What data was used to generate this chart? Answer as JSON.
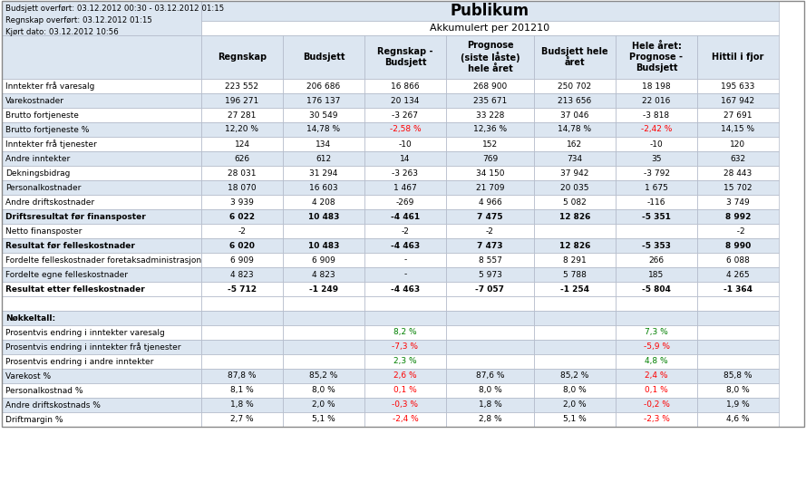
{
  "title": "Publikum",
  "subtitle": "Akkumulert per 201210",
  "info_lines": [
    "Budsjett overført: 03.12.2012 00:30 - 03.12.2012 01:15",
    "Regnskap overført: 03.12.2012 01:15",
    "Kjørt dato: 03.12.2012 10:56"
  ],
  "col_headers": [
    "Regnskap",
    "Budsjett",
    "Regnskap -\nBudsjett",
    "Prognose\n(siste låste)\nhele året",
    "Budsjett hele\nåret",
    "Hele året:\nPrognose -\nBudsjett",
    "Hittil i fjor"
  ],
  "rows": [
    {
      "label": "Inntekter frå varesalg",
      "bold": false,
      "bg": "white",
      "values": [
        "223 552",
        "206 686",
        "16 866",
        "268 900",
        "250 702",
        "18 198",
        "195 633"
      ],
      "colors": [
        "k",
        "k",
        "k",
        "k",
        "k",
        "k",
        "k"
      ]
    },
    {
      "label": "Varekostnader",
      "bold": false,
      "bg": "light",
      "values": [
        "196 271",
        "176 137",
        "20 134",
        "235 671",
        "213 656",
        "22 016",
        "167 942"
      ],
      "colors": [
        "k",
        "k",
        "k",
        "k",
        "k",
        "k",
        "k"
      ]
    },
    {
      "label": "Brutto fortjeneste",
      "bold": false,
      "bg": "white",
      "values": [
        "27 281",
        "30 549",
        "-3 267",
        "33 228",
        "37 046",
        "-3 818",
        "27 691"
      ],
      "colors": [
        "k",
        "k",
        "k",
        "k",
        "k",
        "k",
        "k"
      ]
    },
    {
      "label": "Brutto fortjeneste %",
      "bold": false,
      "bg": "light",
      "values": [
        "12,20 %",
        "14,78 %",
        "-2,58 %",
        "12,36 %",
        "14,78 %",
        "-2,42 %",
        "14,15 %"
      ],
      "colors": [
        "k",
        "k",
        "red",
        "k",
        "k",
        "red",
        "k"
      ]
    },
    {
      "label": "Inntekter frå tjenester",
      "bold": false,
      "bg": "white",
      "values": [
        "124",
        "134",
        "-10",
        "152",
        "162",
        "-10",
        "120"
      ],
      "colors": [
        "k",
        "k",
        "k",
        "k",
        "k",
        "k",
        "k"
      ]
    },
    {
      "label": "Andre inntekter",
      "bold": false,
      "bg": "light",
      "values": [
        "626",
        "612",
        "14",
        "769",
        "734",
        "35",
        "632"
      ],
      "colors": [
        "k",
        "k",
        "k",
        "k",
        "k",
        "k",
        "k"
      ]
    },
    {
      "label": "Dekningsbidrag",
      "bold": false,
      "bg": "white",
      "values": [
        "28 031",
        "31 294",
        "-3 263",
        "34 150",
        "37 942",
        "-3 792",
        "28 443"
      ],
      "colors": [
        "k",
        "k",
        "k",
        "k",
        "k",
        "k",
        "k"
      ]
    },
    {
      "label": "Personalkostnader",
      "bold": false,
      "bg": "light",
      "values": [
        "18 070",
        "16 603",
        "1 467",
        "21 709",
        "20 035",
        "1 675",
        "15 702"
      ],
      "colors": [
        "k",
        "k",
        "k",
        "k",
        "k",
        "k",
        "k"
      ]
    },
    {
      "label": "Andre driftskostnader",
      "bold": false,
      "bg": "white",
      "values": [
        "3 939",
        "4 208",
        "-269",
        "4 966",
        "5 082",
        "-116",
        "3 749"
      ],
      "colors": [
        "k",
        "k",
        "k",
        "k",
        "k",
        "k",
        "k"
      ]
    },
    {
      "label": "Driftsresultat før finansposter",
      "bold": true,
      "bg": "light",
      "values": [
        "6 022",
        "10 483",
        "-4 461",
        "7 475",
        "12 826",
        "-5 351",
        "8 992"
      ],
      "colors": [
        "k",
        "k",
        "k",
        "k",
        "k",
        "k",
        "k"
      ]
    },
    {
      "label": "Netto finansposter",
      "bold": false,
      "bg": "white",
      "values": [
        "-2",
        "",
        "-2",
        "-2",
        "",
        "",
        "  -2"
      ],
      "colors": [
        "k",
        "k",
        "k",
        "k",
        "k",
        "k",
        "k"
      ]
    },
    {
      "label": "Resultat før felleskostnader",
      "bold": true,
      "bg": "light",
      "values": [
        "6 020",
        "10 483",
        "-4 463",
        "7 473",
        "12 826",
        "-5 353",
        "8 990"
      ],
      "colors": [
        "k",
        "k",
        "k",
        "k",
        "k",
        "k",
        "k"
      ]
    },
    {
      "label": "Fordelte felleskostnader foretaksadministrasjon",
      "bold": false,
      "bg": "white",
      "values": [
        "6 909",
        "6 909",
        "-",
        "8 557",
        "8 291",
        "266",
        "6 088"
      ],
      "colors": [
        "k",
        "k",
        "k",
        "k",
        "k",
        "k",
        "k"
      ]
    },
    {
      "label": "Fordelte egne felleskostnader",
      "bold": false,
      "bg": "light",
      "values": [
        "4 823",
        "4 823",
        "-",
        "5 973",
        "5 788",
        "185",
        "4 265"
      ],
      "colors": [
        "k",
        "k",
        "k",
        "k",
        "k",
        "k",
        "k"
      ]
    },
    {
      "label": "Resultat etter felleskostnader",
      "bold": true,
      "bg": "white",
      "values": [
        "-5 712",
        "-1 249",
        "-4 463",
        "-7 057",
        "-1 254",
        "-5 804",
        "-1 364"
      ],
      "colors": [
        "k",
        "k",
        "k",
        "k",
        "k",
        "k",
        "k"
      ]
    },
    {
      "label": "",
      "bold": false,
      "bg": "white",
      "values": [
        "",
        "",
        "",
        "",
        "",
        "",
        ""
      ],
      "colors": [
        "k",
        "k",
        "k",
        "k",
        "k",
        "k",
        "k"
      ]
    },
    {
      "label": "Nøkkeltall:",
      "bold": true,
      "bg": "light",
      "values": [
        "",
        "",
        "",
        "",
        "",
        "",
        ""
      ],
      "colors": [
        "k",
        "k",
        "k",
        "k",
        "k",
        "k",
        "k"
      ]
    },
    {
      "label": "Prosentvis endring i inntekter varesalg",
      "bold": false,
      "bg": "white",
      "values": [
        "",
        "",
        "8,2 %",
        "",
        "",
        "7,3 %",
        ""
      ],
      "colors": [
        "k",
        "k",
        "green",
        "k",
        "k",
        "green",
        "k"
      ]
    },
    {
      "label": "Prosentvis endring i inntekter frå tjenester",
      "bold": false,
      "bg": "light",
      "values": [
        "",
        "",
        "-7,3 %",
        "",
        "",
        "-5,9 %",
        ""
      ],
      "colors": [
        "k",
        "k",
        "red",
        "k",
        "k",
        "red",
        "k"
      ]
    },
    {
      "label": "Prosentvis endring i andre inntekter",
      "bold": false,
      "bg": "white",
      "values": [
        "",
        "",
        "2,3 %",
        "",
        "",
        "4,8 %",
        ""
      ],
      "colors": [
        "k",
        "k",
        "green",
        "k",
        "k",
        "green",
        "k"
      ]
    },
    {
      "label": "Varekost %",
      "bold": false,
      "bg": "light",
      "values": [
        "87,8 %",
        "85,2 %",
        "2,6 %",
        "87,6 %",
        "85,2 %",
        "2,4 %",
        "85,8 %"
      ],
      "colors": [
        "k",
        "k",
        "red",
        "k",
        "k",
        "red",
        "k"
      ]
    },
    {
      "label": "Personalkostnad %",
      "bold": false,
      "bg": "white",
      "values": [
        "8,1 %",
        "8,0 %",
        "0,1 %",
        "8,0 %",
        "8,0 %",
        "0,1 %",
        "8,0 %"
      ],
      "colors": [
        "k",
        "k",
        "red",
        "k",
        "k",
        "red",
        "k"
      ]
    },
    {
      "label": "Andre driftskostnads %",
      "bold": false,
      "bg": "light",
      "values": [
        "1,8 %",
        "2,0 %",
        "-0,3 %",
        "1,8 %",
        "2,0 %",
        "-0,2 %",
        "1,9 %"
      ],
      "colors": [
        "k",
        "k",
        "red",
        "k",
        "k",
        "red",
        "k"
      ]
    },
    {
      "label": "Driftmargin %",
      "bold": false,
      "bg": "white",
      "values": [
        "2,7 %",
        "5,1 %",
        "-2,4 %",
        "2,8 %",
        "5,1 %",
        "-2,3 %",
        "4,6 %"
      ],
      "colors": [
        "k",
        "k",
        "red",
        "k",
        "k",
        "red",
        "k"
      ]
    }
  ],
  "bg_light": "#dce6f1",
  "bg_white": "#ffffff",
  "border_color": "#b0b8c8",
  "fig_bg": "#ffffff"
}
